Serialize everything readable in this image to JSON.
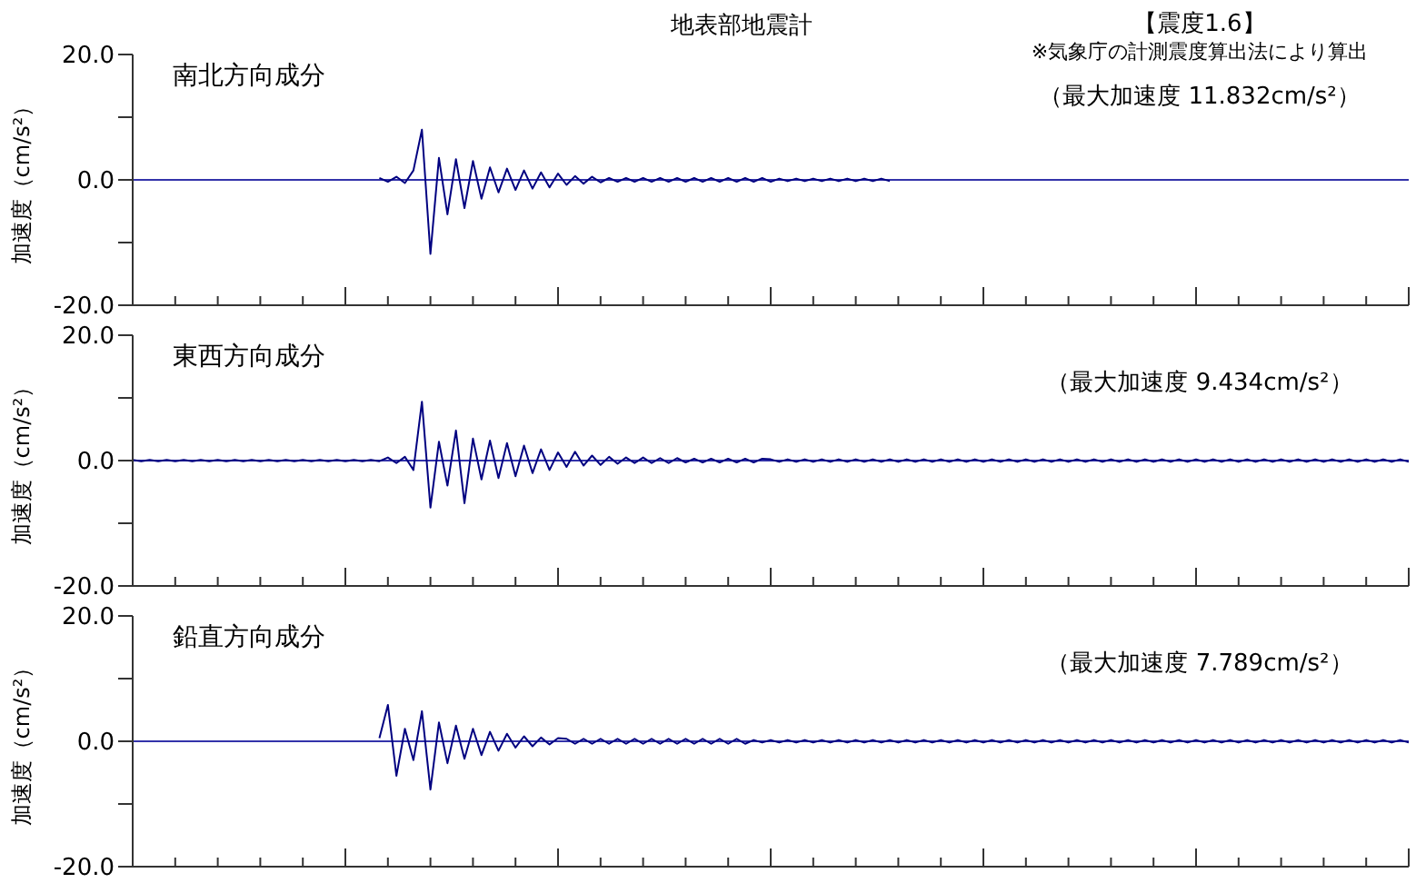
{
  "chart_data": [
    {
      "type": "line",
      "title": "地表部地震計",
      "subtitle": "南北方向成分",
      "ylabel": "加速度（cm/s²）",
      "annotations": [
        "【震度1.6】",
        "※気象庁の計測震度算出法により算出",
        "（最大加速度 11.832cm/s²）"
      ],
      "categories": [
        null,
        null,
        null,
        null,
        null,
        null,
        null,
        null,
        null,
        null,
        null,
        null,
        null,
        null,
        null,
        null,
        null,
        null,
        null,
        null,
        null,
        null,
        null,
        null,
        null,
        null,
        null,
        null,
        null,
        null,
        null,
        null,
        null,
        null,
        null,
        null,
        null,
        null,
        null,
        null,
        null,
        null,
        null,
        null,
        null,
        null,
        null,
        null,
        null,
        null,
        null,
        null,
        null,
        null,
        null,
        null,
        null,
        null,
        null,
        null,
        null,
        null,
        null,
        null,
        null,
        null,
        null,
        null,
        null,
        null,
        null,
        null,
        null,
        null,
        null,
        null,
        null,
        null,
        null,
        null,
        null,
        null,
        null,
        null,
        null,
        null,
        null,
        null,
        null,
        null,
        null,
        null,
        null,
        null,
        null,
        null,
        null,
        null,
        null,
        null,
        null,
        null,
        null,
        null,
        null,
        null,
        null,
        null,
        null,
        null,
        null,
        null,
        null,
        null,
        null,
        null,
        null,
        null,
        null,
        null,
        null,
        null,
        null,
        null,
        null,
        null,
        null,
        null,
        null,
        null,
        null,
        null,
        null,
        null,
        null,
        null,
        null,
        null,
        null,
        null,
        null,
        null,
        null,
        null,
        null,
        null,
        null,
        null,
        null,
        null,
        null
      ],
      "series": [
        {
          "color": "#000080",
          "values": [
            null,
            null,
            null,
            null,
            null,
            null,
            null,
            null,
            null,
            null,
            null,
            null,
            null,
            null,
            null,
            null,
            null,
            null,
            null,
            null,
            null,
            null,
            null,
            null,
            null,
            null,
            null,
            null,
            null,
            0.3,
            -0.3,
            0.5,
            -0.5,
            1.5,
            8.0,
            -11.8,
            3.5,
            -5.5,
            3.3,
            -4.5,
            3.0,
            -3.0,
            2.0,
            -2.0,
            1.8,
            -1.6,
            1.5,
            -1.4,
            1.2,
            -1.2,
            1.0,
            -0.8,
            0.6,
            -0.6,
            0.5,
            -0.4,
            0.3,
            -0.3,
            0.3,
            -0.3,
            0.3,
            -0.3,
            0.3,
            -0.3,
            0.3,
            -0.3,
            0.3,
            -0.3,
            0.3,
            -0.3,
            0.3,
            -0.3,
            0.3,
            -0.3,
            0.3,
            -0.3,
            0.2,
            -0.2,
            0.2,
            -0.2,
            0.2,
            -0.2,
            0.2,
            -0.2,
            0.2,
            -0.2,
            0.2,
            -0.2,
            0.2,
            -0.2,
            null,
            null,
            null,
            null,
            null,
            null,
            null,
            null,
            null,
            null,
            null,
            null,
            null,
            null,
            null,
            null,
            null,
            null,
            null,
            null,
            null,
            null,
            null,
            null,
            null,
            null,
            null,
            null,
            null,
            null,
            null,
            null,
            null,
            null,
            null,
            null,
            null,
            null,
            null,
            null,
            null,
            null,
            null,
            null,
            null,
            null,
            null,
            null,
            null,
            null,
            null,
            null,
            null,
            null,
            null,
            null,
            null,
            null,
            null,
            null,
            null
          ]
        }
      ],
      "ylim": [
        -20,
        20
      ],
      "yticks": [
        {
          "value": 20,
          "label": "20.0"
        },
        {
          "value": 10,
          "label": null
        },
        {
          "value": 0,
          "label": "0.0"
        },
        {
          "value": -10,
          "label": null
        },
        {
          "value": -20,
          "label": "-20.0"
        }
      ],
      "tick_labels": "y",
      "ref_lines": [
        {
          "axis": "y",
          "value": 0,
          "color": "#3333aa"
        }
      ]
    },
    {
      "type": "line",
      "subtitle": "東西方向成分",
      "ylabel": "加速度（cm/s²）",
      "annotations": [
        "（最大加速度 9.434cm/s²）"
      ],
      "categories": [
        null,
        null,
        null,
        null,
        null,
        null,
        null,
        null,
        null,
        null,
        null,
        null,
        null,
        null,
        null,
        null,
        null,
        null,
        null,
        null,
        null,
        null,
        null,
        null,
        null,
        null,
        null,
        null,
        null,
        null,
        null,
        null,
        null,
        null,
        null,
        null,
        null,
        null,
        null,
        null,
        null,
        null,
        null,
        null,
        null,
        null,
        null,
        null,
        null,
        null,
        null,
        null,
        null,
        null,
        null,
        null,
        null,
        null,
        null,
        null,
        null,
        null,
        null,
        null,
        null,
        null,
        null,
        null,
        null,
        null,
        null,
        null,
        null,
        null,
        null,
        null,
        null,
        null,
        null,
        null,
        null,
        null,
        null,
        null,
        null,
        null,
        null,
        null,
        null,
        null,
        null,
        null,
        null,
        null,
        null,
        null,
        null,
        null,
        null,
        null,
        null,
        null,
        null,
        null,
        null,
        null,
        null,
        null,
        null,
        null,
        null,
        null,
        null,
        null,
        null,
        null,
        null,
        null,
        null,
        null,
        null,
        null,
        null,
        null,
        null,
        null,
        null,
        null,
        null,
        null,
        null,
        null,
        null,
        null,
        null,
        null,
        null,
        null,
        null,
        null,
        null,
        null,
        null,
        null,
        null,
        null,
        null,
        null,
        null,
        null,
        null
      ],
      "series": [
        {
          "color": "#000080",
          "values": [
            0.1,
            -0.1,
            0.1,
            -0.1,
            0.1,
            -0.1,
            0.1,
            -0.1,
            0.1,
            -0.1,
            0.1,
            -0.1,
            0.1,
            -0.1,
            0.1,
            -0.1,
            0.1,
            -0.1,
            0.1,
            -0.1,
            0.1,
            -0.1,
            0.1,
            -0.1,
            0.1,
            -0.1,
            0.1,
            -0.1,
            0.1,
            -0.1,
            0.5,
            -0.4,
            0.6,
            -1.5,
            9.4,
            -7.5,
            3.0,
            -4.0,
            4.8,
            -6.8,
            3.5,
            -3.0,
            3.2,
            -2.8,
            2.8,
            -2.5,
            2.4,
            -2.0,
            1.8,
            -1.5,
            1.3,
            -1.0,
            1.4,
            -0.8,
            0.8,
            -0.7,
            0.6,
            -0.5,
            0.5,
            -0.4,
            0.5,
            -0.4,
            0.4,
            -0.4,
            0.4,
            -0.3,
            0.3,
            -0.3,
            0.3,
            -0.3,
            0.3,
            -0.3,
            0.3,
            -0.3,
            0.3,
            0.2,
            -0.2,
            0.2,
            -0.2,
            0.2,
            -0.2,
            0.2,
            -0.2,
            0.2,
            -0.2,
            0.2,
            -0.2,
            0.2,
            -0.2,
            0.2,
            -0.2,
            0.2,
            -0.2,
            0.2,
            -0.2,
            0.2,
            -0.2,
            0.2,
            -0.2,
            0.2,
            -0.2,
            0.2,
            -0.2,
            0.2,
            -0.2,
            0.2,
            -0.2,
            0.2,
            -0.2,
            0.2,
            -0.2,
            0.2,
            -0.2,
            0.2,
            -0.2,
            0.2,
            -0.2,
            0.2,
            -0.2,
            0.2,
            -0.2,
            0.2,
            -0.2,
            0.2,
            -0.2,
            0.2,
            -0.2,
            0.2,
            -0.2,
            0.2,
            -0.2,
            0.2,
            -0.2,
            0.2,
            -0.2,
            0.2,
            -0.2,
            0.2,
            -0.2,
            0.2,
            -0.2,
            0.2,
            -0.2,
            0.2,
            -0.2,
            0.2,
            -0.2,
            0.2,
            -0.2,
            0.2,
            -0.2
          ]
        }
      ],
      "ylim": [
        -20,
        20
      ],
      "yticks": [
        {
          "value": 20,
          "label": "20.0"
        },
        {
          "value": 10,
          "label": null
        },
        {
          "value": 0,
          "label": "0.0"
        },
        {
          "value": -10,
          "label": null
        },
        {
          "value": -20,
          "label": "-20.0"
        }
      ],
      "tick_labels": "y",
      "ref_lines": [
        {
          "axis": "y",
          "value": 0,
          "color": "#3333aa"
        }
      ]
    },
    {
      "type": "line",
      "subtitle": "鉛直方向成分",
      "ylabel": "加速度（cm/s²）",
      "annotations": [
        "（最大加速度 7.789cm/s²）"
      ],
      "categories": [
        null,
        null,
        null,
        null,
        null,
        null,
        null,
        null,
        null,
        null,
        null,
        null,
        null,
        null,
        null,
        null,
        null,
        null,
        null,
        null,
        null,
        null,
        null,
        null,
        null,
        null,
        null,
        null,
        null,
        null,
        null,
        null,
        null,
        null,
        null,
        null,
        null,
        null,
        null,
        null,
        null,
        null,
        null,
        null,
        null,
        null,
        null,
        null,
        null,
        null,
        null,
        null,
        null,
        null,
        null,
        null,
        null,
        null,
        null,
        null,
        null,
        null,
        null,
        null,
        null,
        null,
        null,
        null,
        null,
        null,
        null,
        null,
        null,
        null,
        null,
        null,
        null,
        null,
        null,
        null,
        null,
        null,
        null,
        null,
        null,
        null,
        null,
        null,
        null,
        null,
        null,
        null,
        null,
        null,
        null,
        null,
        null,
        null,
        null,
        null,
        null,
        null,
        null,
        null,
        null,
        null,
        null,
        null,
        null,
        null,
        null,
        null,
        null,
        null,
        null,
        null,
        null,
        null,
        null,
        null,
        null,
        null,
        null,
        null,
        null,
        null,
        null,
        null,
        null,
        null,
        null,
        null,
        null,
        null,
        null,
        null,
        null,
        null,
        null,
        null,
        null,
        null,
        null,
        null,
        null,
        null,
        null,
        null,
        null,
        null,
        null
      ],
      "series": [
        {
          "color": "#000080",
          "values": [
            null,
            null,
            null,
            null,
            null,
            null,
            null,
            null,
            null,
            null,
            null,
            null,
            null,
            null,
            null,
            null,
            null,
            null,
            null,
            null,
            null,
            null,
            null,
            null,
            null,
            null,
            null,
            null,
            null,
            0.5,
            5.8,
            -5.5,
            2.0,
            -3.0,
            4.8,
            -7.7,
            3.0,
            -3.5,
            2.5,
            -2.8,
            2.0,
            -2.2,
            1.5,
            -1.5,
            1.2,
            -1.0,
            0.8,
            -0.8,
            0.6,
            -0.5,
            0.5,
            0.4,
            -0.4,
            0.4,
            -0.4,
            0.4,
            -0.4,
            0.4,
            -0.4,
            0.4,
            -0.4,
            0.4,
            -0.4,
            0.4,
            -0.4,
            0.4,
            -0.4,
            0.4,
            -0.4,
            0.4,
            -0.4,
            0.4,
            -0.4,
            0.2,
            -0.2,
            0.2,
            -0.2,
            0.2,
            -0.2,
            0.2,
            -0.2,
            0.2,
            -0.2,
            0.2,
            -0.2,
            0.2,
            -0.2,
            0.2,
            -0.2,
            0.2,
            -0.2,
            0.2,
            -0.2,
            0.2,
            -0.2,
            0.2,
            -0.2,
            0.2,
            -0.2,
            0.2,
            -0.2,
            0.2,
            -0.2,
            0.2,
            -0.2,
            0.2,
            -0.2,
            0.2,
            -0.2,
            0.2,
            -0.2,
            0.2,
            -0.2,
            0.2,
            -0.2,
            0.2,
            -0.2,
            0.2,
            -0.2,
            0.2,
            -0.2,
            0.2,
            -0.2,
            0.2,
            -0.2,
            0.2,
            -0.2,
            0.2,
            -0.2,
            0.2,
            -0.2,
            0.2,
            -0.2,
            0.2,
            -0.2,
            0.2,
            -0.2,
            0.2,
            -0.2,
            0.2,
            -0.2,
            0.2,
            -0.2,
            0.2,
            -0.2,
            0.2,
            -0.2,
            0.2,
            -0.2,
            0.2,
            -0.2
          ]
        }
      ],
      "ylim": [
        -20,
        20
      ],
      "yticks": [
        {
          "value": 20,
          "label": "20.0"
        },
        {
          "value": 10,
          "label": null
        },
        {
          "value": 0,
          "label": "0.0"
        },
        {
          "value": -10,
          "label": null
        },
        {
          "value": -20,
          "label": "-20.0"
        }
      ],
      "tick_labels": "y",
      "ref_lines": [
        {
          "axis": "y",
          "value": 0,
          "color": "#3333aa"
        }
      ]
    }
  ]
}
